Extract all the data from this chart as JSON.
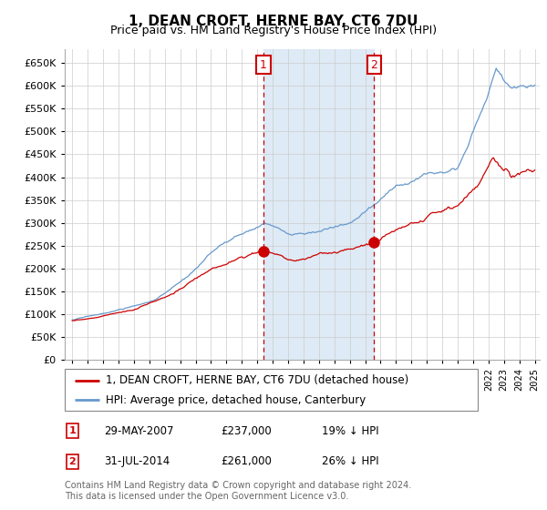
{
  "title": "1, DEAN CROFT, HERNE BAY, CT6 7DU",
  "subtitle": "Price paid vs. HM Land Registry's House Price Index (HPI)",
  "legend_line1": "1, DEAN CROFT, HERNE BAY, CT6 7DU (detached house)",
  "legend_line2": "HPI: Average price, detached house, Canterbury",
  "table": [
    {
      "num": 1,
      "date": "29-MAY-2007",
      "price": "£237,000",
      "hpi": "19% ↓ HPI"
    },
    {
      "num": 2,
      "date": "31-JUL-2014",
      "price": "£261,000",
      "hpi": "26% ↓ HPI"
    }
  ],
  "footer": "Contains HM Land Registry data © Crown copyright and database right 2024.\nThis data is licensed under the Open Government Licence v3.0.",
  "sale1_year": 2007.41,
  "sale1_price": 237000,
  "sale2_year": 2014.58,
  "sale2_price": 261000,
  "hpi_color": "#6699cc",
  "sale_color": "#cc0000",
  "shaded_color": "#deeaf5",
  "highlight_color": "#cc0000",
  "grid_color": "#cccccc",
  "background_color": "#ffffff",
  "ylim_min": 0,
  "ylim_max": 680000,
  "xlim_min": 1994.5,
  "xlim_max": 2025.3
}
